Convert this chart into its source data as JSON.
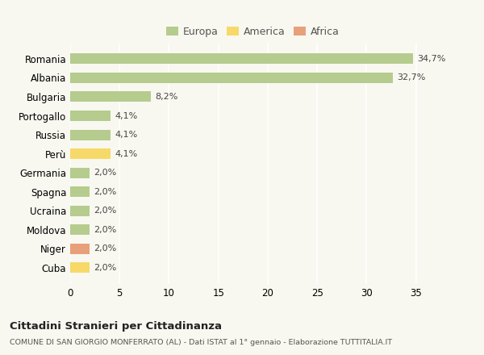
{
  "categories": [
    "Romania",
    "Albania",
    "Bulgaria",
    "Portogallo",
    "Russia",
    "Perù",
    "Germania",
    "Spagna",
    "Ucraina",
    "Moldova",
    "Niger",
    "Cuba"
  ],
  "values": [
    34.7,
    32.7,
    8.2,
    4.1,
    4.1,
    4.1,
    2.0,
    2.0,
    2.0,
    2.0,
    2.0,
    2.0
  ],
  "labels": [
    "34,7%",
    "32,7%",
    "8,2%",
    "4,1%",
    "4,1%",
    "4,1%",
    "2,0%",
    "2,0%",
    "2,0%",
    "2,0%",
    "2,0%",
    "2,0%"
  ],
  "colors": [
    "#b5cc8e",
    "#b5cc8e",
    "#b5cc8e",
    "#b5cc8e",
    "#b5cc8e",
    "#f7d96a",
    "#b5cc8e",
    "#b5cc8e",
    "#b5cc8e",
    "#b5cc8e",
    "#e8a07a",
    "#f7d96a"
  ],
  "legend": [
    {
      "label": "Europa",
      "color": "#b5cc8e"
    },
    {
      "label": "America",
      "color": "#f7d96a"
    },
    {
      "label": "Africa",
      "color": "#e8a07a"
    }
  ],
  "xlim": [
    0,
    37
  ],
  "xticks": [
    0,
    5,
    10,
    15,
    20,
    25,
    30,
    35
  ],
  "title": "Cittadini Stranieri per Cittadinanza",
  "subtitle": "COMUNE DI SAN GIORGIO MONFERRATO (AL) - Dati ISTAT al 1° gennaio - Elaborazione TUTTITALIA.IT",
  "bg_color": "#f8f8f0",
  "grid_color": "#ffffff",
  "bar_height": 0.55,
  "label_fontsize": 8.5,
  "tick_fontsize": 8.5,
  "value_fontsize": 8.0
}
